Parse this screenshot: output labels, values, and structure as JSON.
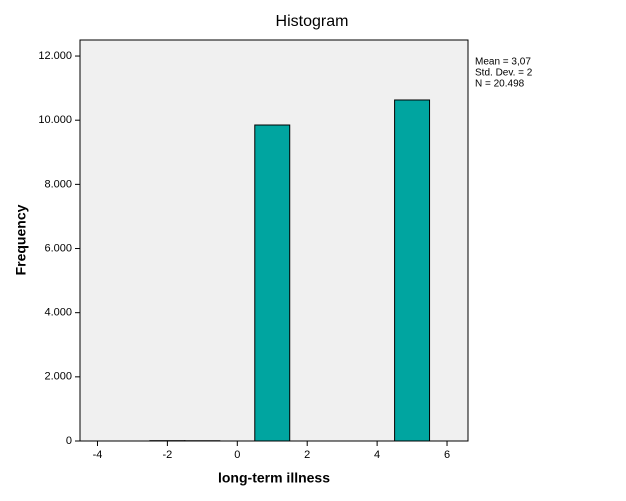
{
  "chart_data": {
    "type": "histogram",
    "title": "Histogram",
    "x_label": "long-term illness",
    "y_label": "Frequency",
    "bins": [
      -4.5,
      -3.5,
      -2.5,
      -1.5,
      -0.5,
      0.5,
      1.5,
      2.5,
      3.5,
      4.5,
      5.5
    ],
    "values": [
      0,
      0,
      10,
      8,
      0,
      9850,
      0,
      0,
      0,
      10630
    ],
    "color": "#00a5a0",
    "xlim": [
      -4.5,
      6.6
    ],
    "xticks": [
      -4,
      -2,
      0,
      2,
      4,
      6
    ],
    "ylim": [
      0,
      12500
    ],
    "yticks": [
      0,
      {
        "value": 2000,
        "label": "2.000"
      },
      {
        "value": 4000,
        "label": "4.000"
      },
      {
        "value": 6000,
        "label": "6.000"
      },
      {
        "value": 8000,
        "label": "8.000"
      },
      {
        "value": 10000,
        "label": "10.000"
      },
      {
        "value": 12000,
        "label": "12.000"
      }
    ],
    "annotations": [
      "Mean = 3,07",
      "Std. Dev. = 2",
      "N = 20.498"
    ]
  }
}
